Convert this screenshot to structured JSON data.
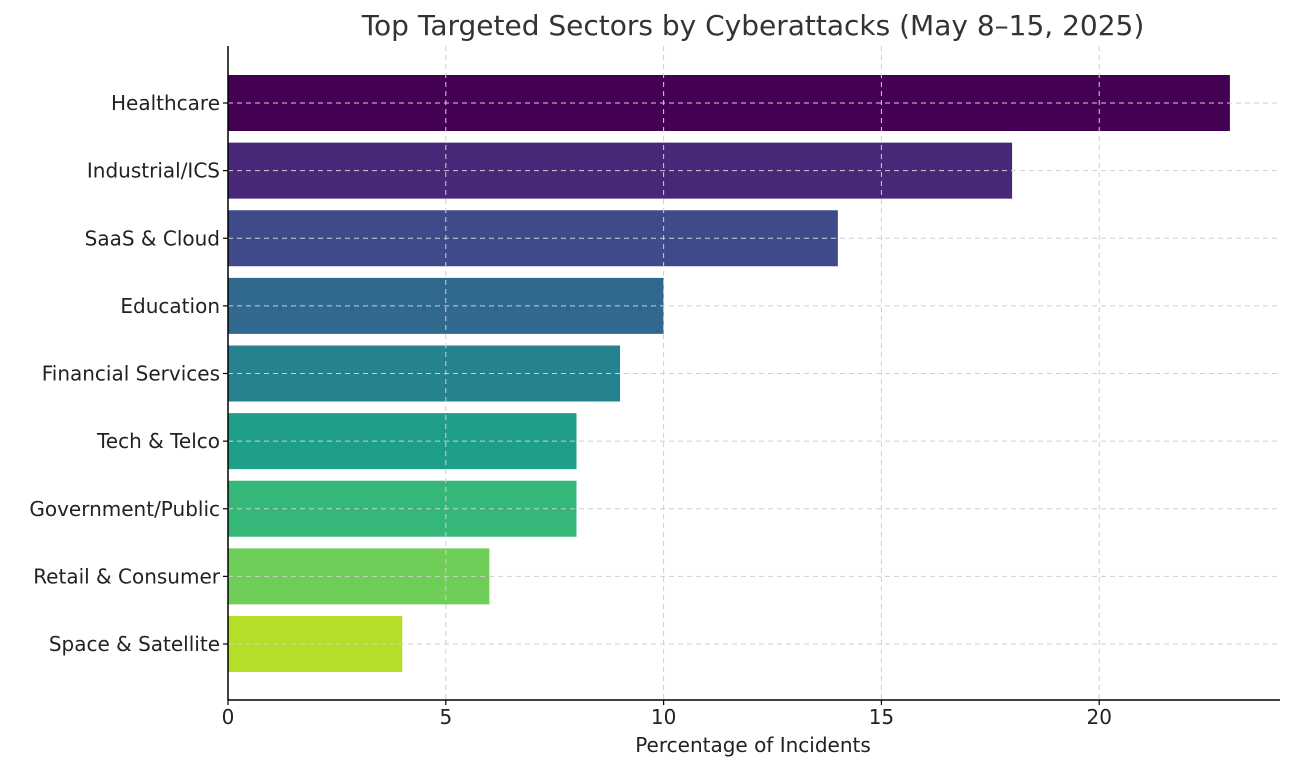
{
  "chart_data": {
    "type": "bar",
    "orientation": "horizontal",
    "title": "Top Targeted Sectors by Cyberattacks (May 8–15, 2025)",
    "xlabel": "Percentage of Incidents",
    "ylabel": "",
    "categories": [
      "Healthcare",
      "Industrial/ICS",
      "SaaS & Cloud",
      "Education",
      "Financial Services",
      "Tech & Telco",
      "Government/Public",
      "Retail & Consumer",
      "Space & Satellite"
    ],
    "values": [
      23,
      18,
      14,
      10,
      9,
      8,
      8,
      6,
      4
    ],
    "colors": [
      "#440154",
      "#472777",
      "#3e4a89",
      "#31688e",
      "#26828e",
      "#1f9e89",
      "#35b779",
      "#6ece58",
      "#b5de2b"
    ],
    "xlim": [
      0,
      24.15
    ],
    "xticks": [
      0,
      5,
      10,
      15,
      20
    ],
    "xtick_labels": [
      "0",
      "5",
      "10",
      "15",
      "20"
    ],
    "grid": true
  }
}
